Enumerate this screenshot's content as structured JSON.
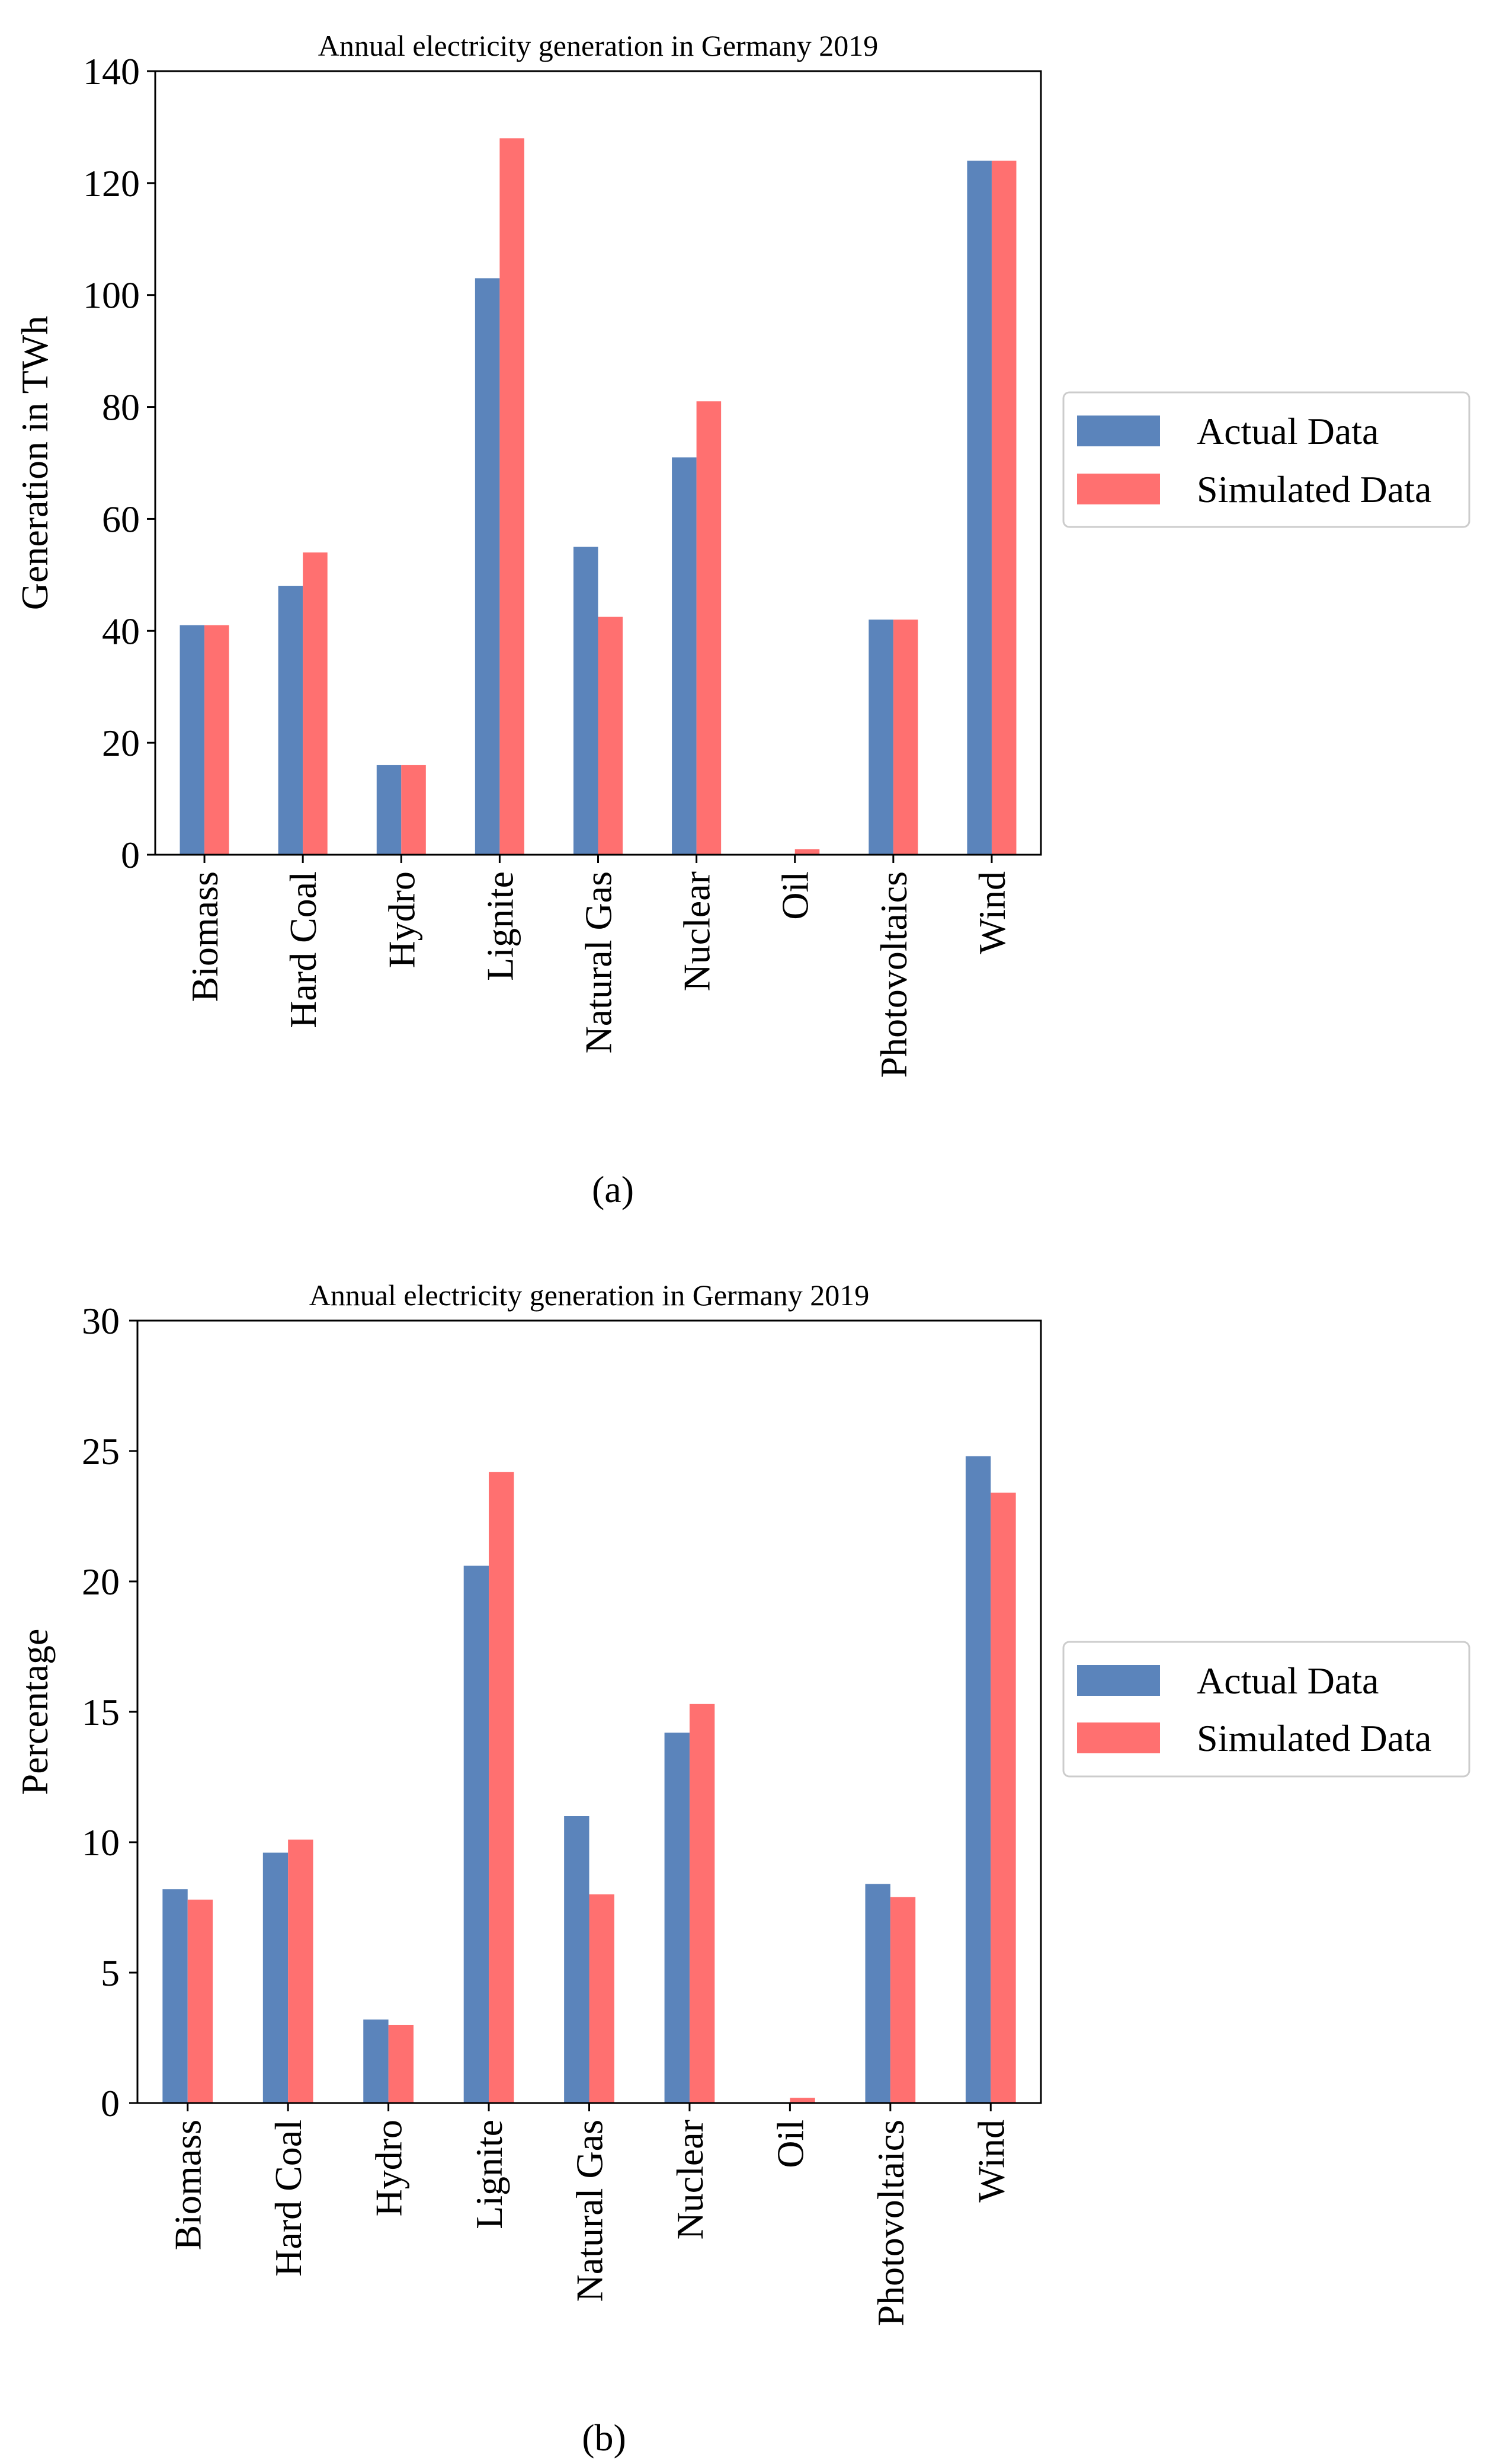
{
  "colors": {
    "actual": "#5b84bb",
    "simulated": "#ff7070",
    "axis": "#000000",
    "legend_border": "#cccccc"
  },
  "chart_data": [
    {
      "type": "bar",
      "title": "Annual electricity generation in Germany 2019",
      "xlabel": "",
      "ylabel": "Generation in TWh",
      "ylim": [
        0,
        140
      ],
      "yticks": [
        0,
        20,
        40,
        60,
        80,
        100,
        120,
        140
      ],
      "categories": [
        "Biomass",
        "Hard Coal",
        "Hydro",
        "Lignite",
        "Natural Gas",
        "Nuclear",
        "Oil",
        "Photovoltaics",
        "Wind"
      ],
      "series": [
        {
          "name": "Actual Data",
          "values": [
            41,
            48,
            16,
            103,
            55,
            71,
            0,
            42,
            124
          ]
        },
        {
          "name": "Simulated Data",
          "values": [
            41,
            54,
            16,
            128,
            42.5,
            81,
            1,
            42,
            124
          ]
        }
      ],
      "legend": "outside-right",
      "caption": "(a)"
    },
    {
      "type": "bar",
      "title": "Annual electricity generation in Germany 2019",
      "xlabel": "",
      "ylabel": "Percentage",
      "ylim": [
        0,
        30
      ],
      "yticks": [
        0,
        5,
        10,
        15,
        20,
        25,
        30
      ],
      "categories": [
        "Biomass",
        "Hard Coal",
        "Hydro",
        "Lignite",
        "Natural Gas",
        "Nuclear",
        "Oil",
        "Photovoltaics",
        "Wind"
      ],
      "series": [
        {
          "name": "Actual Data",
          "values": [
            8.2,
            9.6,
            3.2,
            20.6,
            11.0,
            14.2,
            0,
            8.4,
            24.8
          ]
        },
        {
          "name": "Simulated Data",
          "values": [
            7.8,
            10.1,
            3.0,
            24.2,
            8.0,
            15.3,
            0.2,
            7.9,
            23.4
          ]
        }
      ],
      "legend": "outside-right",
      "caption": "(b)"
    }
  ]
}
